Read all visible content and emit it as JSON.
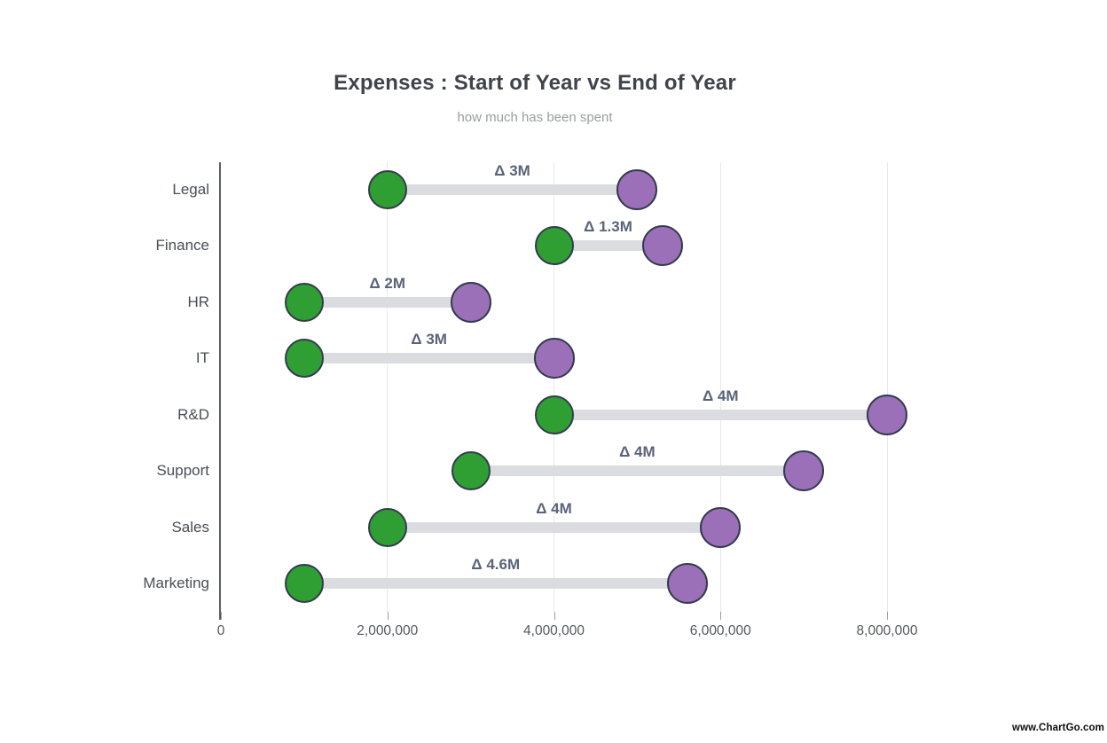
{
  "page": {
    "watermark": "www.ChartGo.com"
  },
  "chart_data": {
    "type": "scatter",
    "variant": "dumbbell",
    "title": "Expenses : Start of Year vs End of Year",
    "subtitle": "how much has been spent",
    "categories": [
      "Legal",
      "Finance",
      "HR",
      "IT",
      "R&D",
      "Support",
      "Sales",
      "Marketing"
    ],
    "series": [
      {
        "name": "Start of Year",
        "color": "#2f9e33",
        "values": [
          2000000,
          4000000,
          1000000,
          1000000,
          4000000,
          3000000,
          2000000,
          1000000
        ]
      },
      {
        "name": "End of Year",
        "color": "#9c70b8",
        "values": [
          5000000,
          5300000,
          3000000,
          4000000,
          8000000,
          7000000,
          6000000,
          5600000
        ]
      }
    ],
    "delta_labels": [
      "Δ 3M",
      "Δ 1.3M",
      "Δ 2M",
      "Δ 3M",
      "Δ 4M",
      "Δ 4M",
      "Δ 4M",
      "Δ 4.6M"
    ],
    "x_ticks": [
      {
        "value": 0,
        "label": "0"
      },
      {
        "value": 2000000,
        "label": "2,000,000"
      },
      {
        "value": 4000000,
        "label": "4,000,000"
      },
      {
        "value": 6000000,
        "label": "6,000,000"
      },
      {
        "value": 8000000,
        "label": "8,000,000"
      }
    ],
    "xlim": [
      0,
      9000000
    ],
    "grid": true,
    "legend": "none",
    "colors": {
      "dot_border": "#343a4e",
      "connector": "#dadce0",
      "delta_text": "#5a6378",
      "gridline": "#e8e8eb",
      "axis_line": "#5b5d64",
      "tick_mark": "#9b9da3",
      "tick_text": "#55585f",
      "category_text": "#4a4d55",
      "title_text": "#3f434b",
      "subtitle_text": "#9a9da2"
    }
  }
}
